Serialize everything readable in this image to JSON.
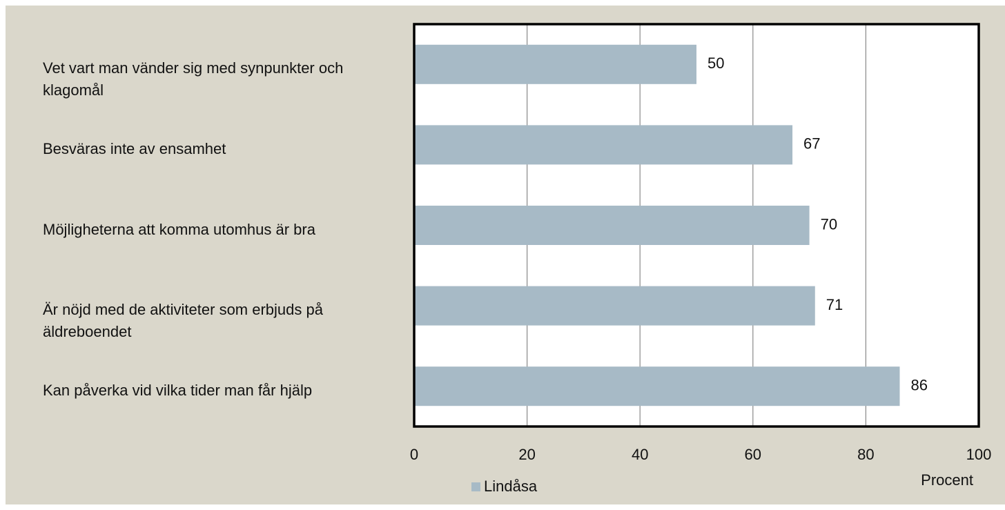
{
  "chart_data": {
    "type": "barh",
    "categories": [
      "Vet vart man vänder sig med synpunkter och klagomål",
      "Besväras inte av ensamhet",
      "Möjligheterna att komma utomhus är bra",
      "Är nöjd med de aktiviteter som erbjuds på äldreboendet",
      "Kan påverka vid vilka tider man får hjälp"
    ],
    "series": [
      {
        "name": "Lindåsa",
        "color": "#a7bac6",
        "values": [
          50,
          67,
          70,
          71,
          86
        ]
      }
    ],
    "xlim": [
      0,
      100
    ],
    "xticks": [
      0,
      20,
      40,
      60,
      80,
      100
    ],
    "xlabel": "Procent",
    "grid": true
  }
}
